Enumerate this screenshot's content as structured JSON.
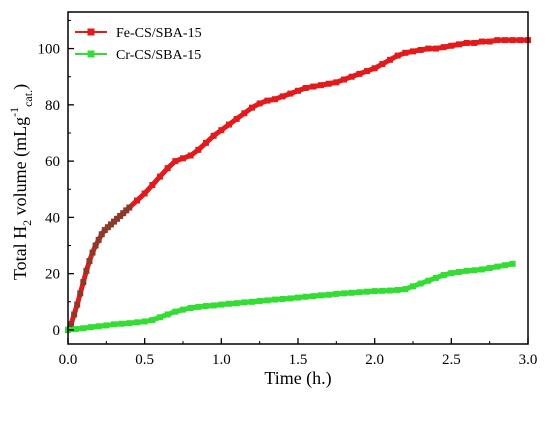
{
  "chart_data": {
    "type": "scatter",
    "xlabel": "Time (h.)",
    "ylabel": {
      "main": "Total H",
      "sub": "2",
      "rest": " volume (mLg",
      "sup": "-1",
      "sub2": "cat.",
      "end": ")"
    },
    "xlim": [
      0,
      3.0
    ],
    "ylim": [
      -5,
      113
    ],
    "xticks": [
      "0.0",
      "0.5",
      "1.0",
      "1.5",
      "2.0",
      "2.5",
      "3.0"
    ],
    "xtick_values": [
      0,
      0.5,
      1.0,
      1.5,
      2.0,
      2.5,
      3.0
    ],
    "yticks": [
      "0",
      "20",
      "40",
      "60",
      "80",
      "100"
    ],
    "ytick_values": [
      0,
      20,
      40,
      60,
      80,
      100
    ],
    "grid": false,
    "legend_position": "top-left",
    "series": [
      {
        "name": "Fe-CS/SBA-15",
        "color": "#e31a1c",
        "early_color": "#8b3a2a",
        "marker": "square",
        "x": [
          0.0,
          0.02,
          0.04,
          0.06,
          0.08,
          0.1,
          0.12,
          0.14,
          0.16,
          0.18,
          0.2,
          0.22,
          0.24,
          0.26,
          0.28,
          0.3,
          0.32,
          0.34,
          0.36,
          0.38,
          0.4,
          0.45,
          0.5,
          0.55,
          0.6,
          0.65,
          0.7,
          0.75,
          0.8,
          0.85,
          0.9,
          0.95,
          1.0,
          1.05,
          1.1,
          1.15,
          1.2,
          1.25,
          1.3,
          1.35,
          1.4,
          1.45,
          1.5,
          1.55,
          1.6,
          1.65,
          1.7,
          1.75,
          1.8,
          1.85,
          1.9,
          1.95,
          2.0,
          2.05,
          2.1,
          2.15,
          2.2,
          2.25,
          2.3,
          2.35,
          2.4,
          2.45,
          2.5,
          2.55,
          2.6,
          2.65,
          2.7,
          2.75,
          2.8,
          2.85,
          2.9,
          2.95,
          3.0
        ],
        "y": [
          0.0,
          2.0,
          5.5,
          9.0,
          13.0,
          17.0,
          21.0,
          24.5,
          27.5,
          30.0,
          32.0,
          34.0,
          35.5,
          36.5,
          37.5,
          38.5,
          39.5,
          40.5,
          41.5,
          42.5,
          43.5,
          46.0,
          48.5,
          51.5,
          54.5,
          57.5,
          60.0,
          61.0,
          62.0,
          64.0,
          66.5,
          69.0,
          71.0,
          73.0,
          75.0,
          77.0,
          79.0,
          80.5,
          81.5,
          82.0,
          83.0,
          84.0,
          85.0,
          86.0,
          86.5,
          87.0,
          87.5,
          88.0,
          89.0,
          90.0,
          91.0,
          92.0,
          93.0,
          94.5,
          96.0,
          97.5,
          98.5,
          99.0,
          99.5,
          100.0,
          100.0,
          100.5,
          101.0,
          101.5,
          102.0,
          102.0,
          102.5,
          102.5,
          103.0,
          103.0,
          103.0,
          103.0,
          103.0
        ]
      },
      {
        "name": "Cr-CS/SBA-15",
        "color": "#33dd33",
        "marker": "square",
        "x": [
          0.0,
          0.05,
          0.1,
          0.15,
          0.2,
          0.25,
          0.3,
          0.35,
          0.4,
          0.45,
          0.5,
          0.55,
          0.6,
          0.65,
          0.7,
          0.75,
          0.8,
          0.85,
          0.9,
          0.95,
          1.0,
          1.05,
          1.1,
          1.15,
          1.2,
          1.25,
          1.3,
          1.35,
          1.4,
          1.45,
          1.5,
          1.55,
          1.6,
          1.65,
          1.7,
          1.75,
          1.8,
          1.85,
          1.9,
          1.95,
          2.0,
          2.05,
          2.1,
          2.15,
          2.2,
          2.25,
          2.3,
          2.35,
          2.4,
          2.45,
          2.5,
          2.55,
          2.6,
          2.65,
          2.7,
          2.75,
          2.8,
          2.85,
          2.9
        ],
        "y": [
          0.0,
          0.3,
          0.6,
          1.0,
          1.3,
          1.6,
          2.0,
          2.2,
          2.4,
          2.7,
          3.0,
          3.5,
          4.5,
          5.5,
          6.5,
          7.2,
          7.8,
          8.2,
          8.5,
          8.7,
          9.0,
          9.3,
          9.5,
          9.8,
          10.0,
          10.3,
          10.5,
          10.8,
          11.0,
          11.2,
          11.5,
          11.8,
          12.0,
          12.3,
          12.5,
          12.8,
          13.0,
          13.2,
          13.4,
          13.6,
          13.8,
          13.9,
          14.0,
          14.2,
          14.5,
          15.5,
          16.5,
          17.5,
          18.5,
          19.5,
          20.2,
          20.6,
          21.0,
          21.2,
          21.5,
          22.0,
          22.5,
          23.0,
          23.5
        ]
      }
    ]
  }
}
